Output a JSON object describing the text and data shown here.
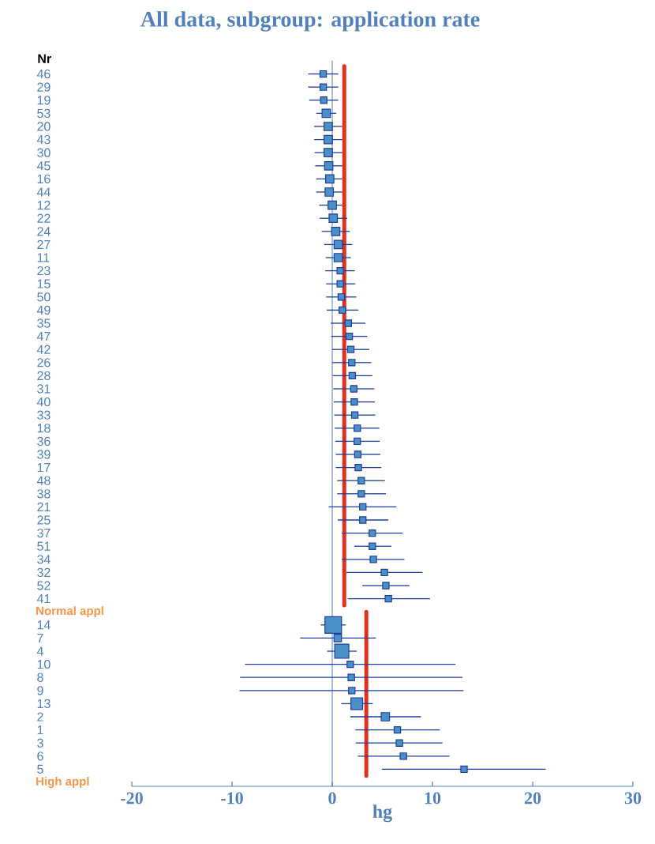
{
  "chart_data": {
    "type": "bubble",
    "orientation": "horizontal",
    "title": "All data, subgroup: application rate",
    "xlabel": "hg",
    "ylabel": "Nr",
    "marker": "square",
    "color": "#4a90c8",
    "categories": [
      "46",
      "29",
      "19",
      "53",
      "20",
      "43",
      "30",
      "45",
      "16",
      "44",
      "12",
      "22",
      "24",
      "27",
      "11",
      "23",
      "15",
      "50",
      "49",
      "35",
      "47",
      "42",
      "26",
      "28",
      "31",
      "40",
      "33",
      "18",
      "36",
      "39",
      "17",
      "48",
      "38",
      "21",
      "25",
      "37",
      "51",
      "34",
      "32",
      "52",
      "41",
      null,
      "14",
      "7",
      "4",
      "10",
      "8",
      "9",
      "13",
      "2",
      "1",
      "3",
      "6",
      "5",
      null
    ],
    "values": [
      -0.9,
      -0.9,
      -0.85,
      -0.6,
      -0.4,
      -0.4,
      -0.4,
      -0.35,
      -0.25,
      -0.3,
      0.0,
      0.1,
      0.35,
      0.6,
      0.6,
      0.8,
      0.8,
      0.9,
      1.0,
      1.6,
      1.7,
      1.85,
      1.95,
      2.0,
      2.15,
      2.2,
      2.25,
      2.5,
      2.5,
      2.55,
      2.6,
      2.9,
      2.9,
      3.05,
      3.05,
      4.0,
      4.0,
      4.1,
      5.2,
      5.35,
      5.6,
      null,
      0.1,
      0.55,
      0.95,
      1.8,
      1.9,
      1.95,
      2.45,
      5.3,
      6.5,
      6.7,
      7.1,
      13.15,
      null
    ],
    "errors": [
      [
        -2.4,
        0.6
      ],
      [
        -2.4,
        0.6
      ],
      [
        -2.3,
        0.6
      ],
      [
        -1.6,
        0.4
      ],
      [
        -1.8,
        1.0
      ],
      [
        -1.8,
        1.0
      ],
      [
        -1.75,
        1.0
      ],
      [
        -1.7,
        1.0
      ],
      [
        -1.6,
        1.0
      ],
      [
        -1.6,
        1.0
      ],
      [
        -1.3,
        1.0
      ],
      [
        -1.25,
        1.5
      ],
      [
        -1.05,
        1.75
      ],
      [
        -0.8,
        2.0
      ],
      [
        -0.65,
        1.85
      ],
      [
        -0.7,
        2.25
      ],
      [
        -0.6,
        2.3
      ],
      [
        -0.6,
        2.4
      ],
      [
        -0.55,
        2.6
      ],
      [
        -0.15,
        3.3
      ],
      [
        -0.1,
        3.5
      ],
      [
        0.0,
        3.7
      ],
      [
        0.0,
        3.9
      ],
      [
        0.05,
        4.0
      ],
      [
        0.1,
        4.2
      ],
      [
        0.15,
        4.25
      ],
      [
        0.2,
        4.3
      ],
      [
        0.25,
        4.7
      ],
      [
        0.3,
        4.75
      ],
      [
        0.35,
        4.8
      ],
      [
        0.35,
        4.9
      ],
      [
        0.5,
        5.25
      ],
      [
        0.5,
        5.35
      ],
      [
        -0.35,
        6.4
      ],
      [
        0.55,
        5.6
      ],
      [
        0.95,
        7.05
      ],
      [
        2.2,
        5.9
      ],
      [
        0.95,
        7.2
      ],
      [
        1.4,
        9.0
      ],
      [
        3.0,
        7.7
      ],
      [
        1.55,
        9.75
      ],
      null,
      [
        -1.15,
        1.35
      ],
      [
        -3.2,
        4.35
      ],
      [
        -0.5,
        2.45
      ],
      [
        -8.7,
        12.3
      ],
      [
        -9.2,
        13.0
      ],
      [
        -9.25,
        13.1
      ],
      [
        0.9,
        4.05
      ],
      [
        1.8,
        8.85
      ],
      [
        2.3,
        10.75
      ],
      [
        2.35,
        11.0
      ],
      [
        2.55,
        11.7
      ],
      [
        4.95,
        21.3
      ],
      null
    ],
    "sizes": [
      0.15,
      0.15,
      0.15,
      0.25,
      0.25,
      0.25,
      0.25,
      0.25,
      0.25,
      0.25,
      0.25,
      0.25,
      0.25,
      0.25,
      0.25,
      0.15,
      0.15,
      0.15,
      0.15,
      0.15,
      0.15,
      0.15,
      0.15,
      0.15,
      0.15,
      0.15,
      0.15,
      0.15,
      0.15,
      0.15,
      0.15,
      0.15,
      0.15,
      0.15,
      0.15,
      0.15,
      0.15,
      0.15,
      0.15,
      0.15,
      0.15,
      null,
      1,
      0.2,
      0.73,
      0.15,
      0.15,
      0.15,
      0.5,
      0.25,
      0.15,
      0.15,
      0.15,
      0.15,
      null
    ],
    "xlim": [
      -20,
      30
    ],
    "xticks": [
      -20,
      -10,
      0,
      10,
      20,
      30
    ],
    "annotations": [
      "Normal appl",
      "High appl"
    ],
    "ref_lines": [
      {
        "axis": "x",
        "value": 0,
        "color": "#4f81bd"
      },
      {
        "axis": "x",
        "value": 1.2,
        "color": "#e0301e"
      },
      {
        "axis": "x",
        "value": 3.4,
        "color": "#e0301e"
      }
    ]
  }
}
